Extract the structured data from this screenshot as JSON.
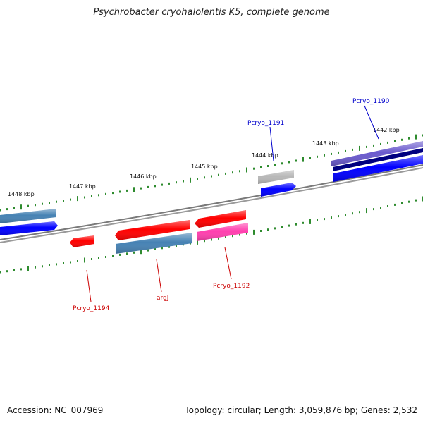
{
  "title": "Psychrobacter cryohalolentis K5, complete genome",
  "accession": "Accession: NC_007969",
  "summary": "Topology: circular; Length: 3,059,876 bp; Genes: 2,532",
  "colors": {
    "backbone": "#7a7a7a",
    "tick": "#2e8b2e",
    "label_forward": "#0000cc",
    "label_reverse": "#cc0000",
    "steelblue": "#4682b4",
    "blue": "#0000ff",
    "red": "#ff0000",
    "gray": "#b8b8b8",
    "slateblue": "#6a5acd",
    "navy": "#000080",
    "pink": "#ff3fae"
  },
  "scale_labels": [
    "1442 kbp",
    "1443 kbp",
    "1444 kbp",
    "1445 kbp",
    "1446 kbp",
    "1447 kbp",
    "1448 kbp"
  ],
  "gene_labels": {
    "pcryo_1190": "Pcryo_1190",
    "pcryo_1191": "Pcryo_1191",
    "pcryo_1192": "Pcryo_1192",
    "argJ": "argJ",
    "pcryo_1194": "Pcryo_1194"
  }
}
